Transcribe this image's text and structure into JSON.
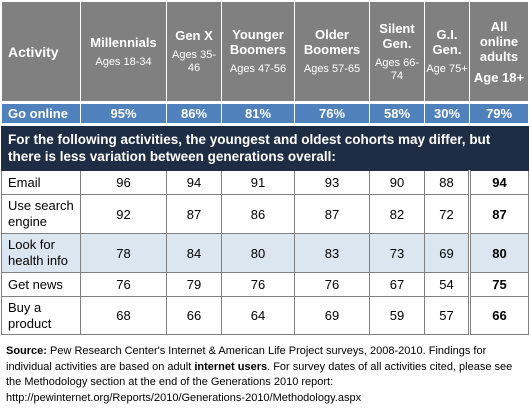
{
  "chart_data": {
    "type": "table",
    "header": {
      "activity": "Activity",
      "columns": [
        {
          "label": "Millennials",
          "sub": "Ages 18-34"
        },
        {
          "label": "Gen X",
          "sub": "Ages 35-46"
        },
        {
          "label": "Younger Boomers",
          "sub": "Ages 47-56"
        },
        {
          "label": "Older Boomers",
          "sub": "Ages 57-65"
        },
        {
          "label": "Silent Gen.",
          "sub": "Ages 66-74"
        },
        {
          "label": "G.I. Gen.",
          "sub": "Age 75+"
        },
        {
          "label": "All online adults",
          "sub": "Age 18+"
        }
      ]
    },
    "go_online": {
      "label": "Go online",
      "values": [
        "95%",
        "86%",
        "81%",
        "76%",
        "58%",
        "30%",
        "79%"
      ]
    },
    "note": "For the following activities, the youngest and oldest cohorts may differ, but there is less variation between generations overall:",
    "rows": [
      {
        "label": "Email",
        "values": [
          96,
          94,
          91,
          93,
          90,
          88,
          94
        ]
      },
      {
        "label": "Use search engine",
        "values": [
          92,
          87,
          86,
          87,
          82,
          72,
          87
        ]
      },
      {
        "label": "Look for health info",
        "values": [
          78,
          84,
          80,
          83,
          73,
          69,
          80
        ]
      },
      {
        "label": "Get news",
        "values": [
          76,
          79,
          76,
          76,
          67,
          54,
          75
        ]
      },
      {
        "label": "Buy a product",
        "values": [
          68,
          66,
          64,
          69,
          59,
          57,
          66
        ]
      }
    ],
    "colors": {
      "header_bg": "#808080",
      "online_bg": "#4f81bd",
      "note_bg": "#1f2d44",
      "shaded_row_bg": "#dce6f1"
    }
  },
  "source": {
    "label": "Source:",
    "text_1": " Pew Research Center's Internet & American Life Project surveys, 2008-2010. Findings for individual activities are based on adult ",
    "bold": "internet users",
    "text_2": ". For survey dates of all activities cited, please see the Methodology section at the end of the Generations 2010 report: http://pewinternet.org/Reports/2010/Generations-2010/Methodology.aspx"
  }
}
